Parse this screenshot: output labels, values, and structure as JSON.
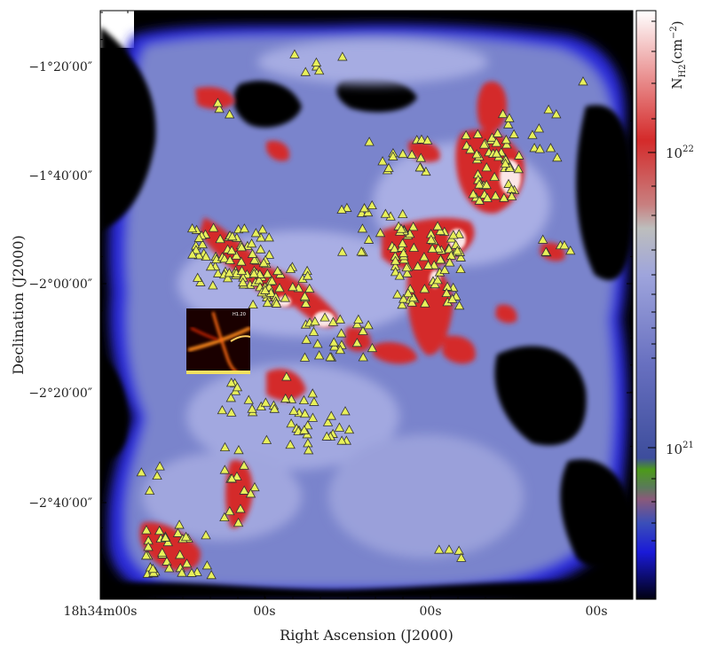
{
  "chart_data": {
    "type": "heatmap",
    "title": "",
    "xlabel": "Right Ascension (J2000)",
    "ylabel": "Declination (J2000)",
    "x_ticks": [
      {
        "label": "18h34m00s",
        "ra_s": 0
      },
      {
        "label": "00s",
        "ra_s": 60
      },
      {
        "label": "00s",
        "ra_s": 120
      },
      {
        "label": "00s",
        "ra_s": 180
      }
    ],
    "y_ticks": [
      {
        "label": "−1°20′00″",
        "dec_arcmin": -80
      },
      {
        "label": "−1°40′00″",
        "dec_arcmin": -100
      },
      {
        "label": "−2°00′00″",
        "dec_arcmin": -120
      },
      {
        "label": "−2°20′00″",
        "dec_arcmin": -140
      },
      {
        "label": "−2°40′00″",
        "dec_arcmin": -160
      }
    ],
    "colorbar": {
      "label": "N_H2 (cm^-2)",
      "scale": "log",
      "ticks": [
        {
          "label": "10^22",
          "value": 1e+22
        },
        {
          "label": "10^21",
          "value": 1e+21
        }
      ],
      "range": [
        3e+20,
        4e+22
      ]
    },
    "marker": {
      "symbol": "triangle",
      "fill": "#e8f05a",
      "stroke": "#333333",
      "description": "sources"
    },
    "inset": {
      "label": "H1.20"
    },
    "colors": {
      "background": "#000000",
      "diffuse": "#8e97d8",
      "dense": "#d42a2a",
      "peak": "#ffffff",
      "marker": "#e8f05a"
    }
  }
}
